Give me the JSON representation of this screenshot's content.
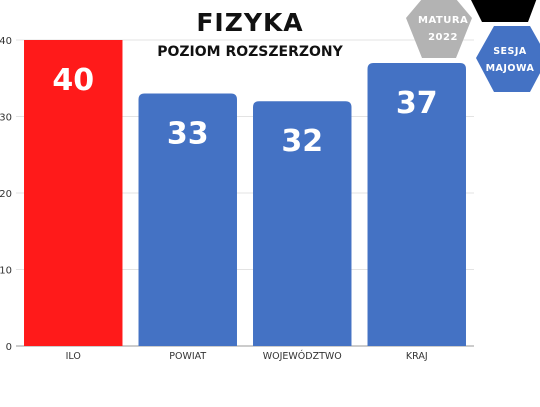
{
  "header": {
    "title": "FIZYKA",
    "subtitle": "POZIOM ROZSZERZONY"
  },
  "badges": {
    "matura_line1": "MATURA",
    "matura_line2": "2022",
    "sesja_line1": "SESJA",
    "sesja_line2": "MAJOWA"
  },
  "colors": {
    "highlight": "#ff1a1a",
    "bar": "#4472c4",
    "badge_grey": "#b3b3b3",
    "badge_black": "#000000",
    "badge_blue": "#4472c4"
  },
  "chart_data": {
    "type": "bar",
    "title": "FIZYKA",
    "subtitle": "POZIOM ROZSZERZONY",
    "categories": [
      "ILO",
      "POWIAT",
      "WOJEWÓDZTWO",
      "KRAJ"
    ],
    "values": [
      40,
      33,
      32,
      37
    ],
    "data_labels": [
      "40",
      "33",
      "32",
      "37"
    ],
    "highlight_index": 0,
    "ylim": [
      0,
      40
    ],
    "yticks": [
      0,
      10,
      20,
      30,
      40
    ],
    "grid": true,
    "legend": "none"
  }
}
